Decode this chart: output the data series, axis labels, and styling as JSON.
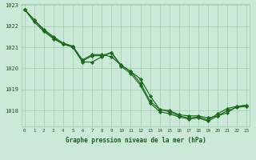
{
  "xlabel": "Graphe pression niveau de la mer (hPa)",
  "x": [
    0,
    1,
    2,
    3,
    4,
    5,
    6,
    7,
    8,
    9,
    10,
    11,
    12,
    13,
    14,
    15,
    16,
    17,
    18,
    19,
    20,
    21,
    22,
    23
  ],
  "series": [
    [
      1022.8,
      1022.3,
      1021.8,
      1021.45,
      1021.15,
      1021.05,
      1020.35,
      1020.6,
      1020.6,
      1020.75,
      1020.15,
      1019.85,
      1019.5,
      1018.7,
      1018.05,
      1018.0,
      1017.8,
      1017.75,
      1017.75,
      1017.65,
      1017.75,
      1017.9,
      1018.2,
      1018.25
    ],
    [
      1022.8,
      1022.3,
      1021.85,
      1021.5,
      1021.2,
      1021.05,
      1020.4,
      1020.65,
      1020.65,
      1020.55,
      1020.15,
      1019.85,
      1019.3,
      1018.45,
      1018.05,
      1017.95,
      1017.75,
      1017.65,
      1017.7,
      1017.55,
      1017.85,
      1018.1,
      1018.2,
      1018.25
    ],
    [
      1022.8,
      1022.2,
      1021.75,
      1021.4,
      1021.15,
      1021.0,
      1020.3,
      1020.3,
      1020.55,
      1020.75,
      1020.1,
      1019.75,
      1019.2,
      1018.35,
      1017.95,
      1017.85,
      1017.7,
      1017.6,
      1017.65,
      1017.5,
      1017.75,
      1018.0,
      1018.15,
      1018.2
    ]
  ],
  "line_color": "#1a6b1a",
  "marker_color": "#1a6b1a",
  "bg_color": "#cce8d8",
  "grid_color": "#99ccaa",
  "ylim": [
    1017.25,
    1023.05
  ],
  "yticks": [
    1018,
    1019,
    1020,
    1021,
    1022,
    1023
  ],
  "label_color": "#1a5c1a",
  "markersize": 2.2,
  "linewidth": 0.85
}
